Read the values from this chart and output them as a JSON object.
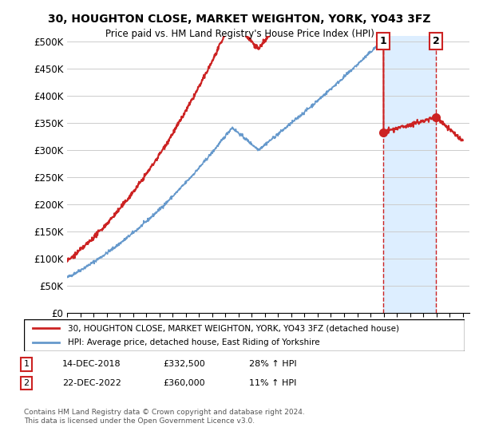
{
  "title": "30, HOUGHTON CLOSE, MARKET WEIGHTON, YORK, YO43 3FZ",
  "subtitle": "Price paid vs. HM Land Registry's House Price Index (HPI)",
  "ylabel_ticks": [
    "£0",
    "£50K",
    "£100K",
    "£150K",
    "£200K",
    "£250K",
    "£300K",
    "£350K",
    "£400K",
    "£450K",
    "£500K"
  ],
  "ytick_vals": [
    0,
    50000,
    100000,
    150000,
    200000,
    250000,
    300000,
    350000,
    400000,
    450000,
    500000
  ],
  "ylim": [
    0,
    510000
  ],
  "xlim_start": 1995.0,
  "xlim_end": 2025.5,
  "hpi_color": "#6699cc",
  "price_color": "#cc2222",
  "annotation_color": "#cc2222",
  "shaded_color": "#ddeeff",
  "marker1_date": 2018.96,
  "marker1_price": 332500,
  "marker1_label": "1",
  "marker2_date": 2022.98,
  "marker2_price": 360000,
  "marker2_label": "2",
  "legend_line1": "30, HOUGHTON CLOSE, MARKET WEIGHTON, YORK, YO43 3FZ (detached house)",
  "legend_line2": "HPI: Average price, detached house, East Riding of Yorkshire",
  "table_row1": [
    "1",
    "14-DEC-2018",
    "£332,500",
    "28% ↑ HPI"
  ],
  "table_row2": [
    "2",
    "22-DEC-2022",
    "£360,000",
    "11% ↑ HPI"
  ],
  "footnote": "Contains HM Land Registry data © Crown copyright and database right 2024.\nThis data is licensed under the Open Government Licence v3.0.",
  "background_color": "#ffffff",
  "grid_color": "#cccccc"
}
